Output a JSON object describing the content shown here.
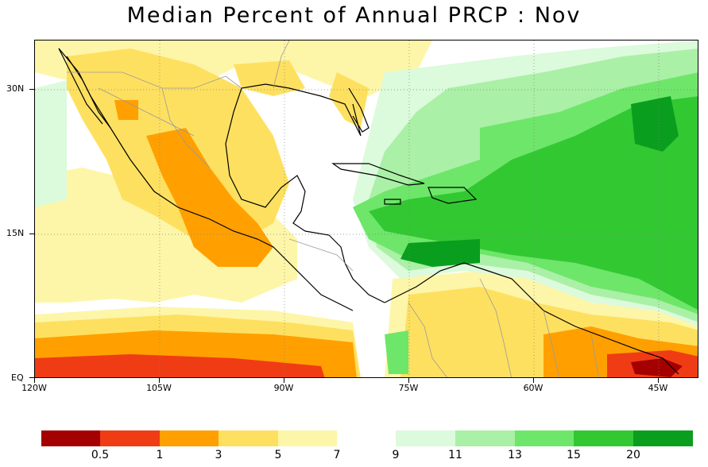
{
  "title": "Median Percent of Annual PRCP :   Nov",
  "map": {
    "region": "Central America / Caribbean / Gulf of Mexico",
    "lat_labels": [
      "30N",
      "15N",
      "EQ"
    ],
    "lon_labels": [
      "120W",
      "105W",
      "90W",
      "75W",
      "60W",
      "45W"
    ],
    "grid": "dotted"
  },
  "colorbar": {
    "bins": [
      {
        "color": "#a50000"
      },
      {
        "color": "#f03c14"
      },
      {
        "color": "#ffa000"
      },
      {
        "color": "#fee060"
      },
      {
        "color": "#fdf6a8"
      },
      {
        "color": "#ffffff"
      },
      {
        "color": "#dcfadc"
      },
      {
        "color": "#aaf0a6"
      },
      {
        "color": "#6ee66a"
      },
      {
        "color": "#32c832"
      },
      {
        "color": "#0a9e1e"
      }
    ],
    "labels": [
      "0.5",
      "1",
      "3",
      "5",
      "7",
      "9",
      "11",
      "13",
      "15",
      "20"
    ]
  }
}
